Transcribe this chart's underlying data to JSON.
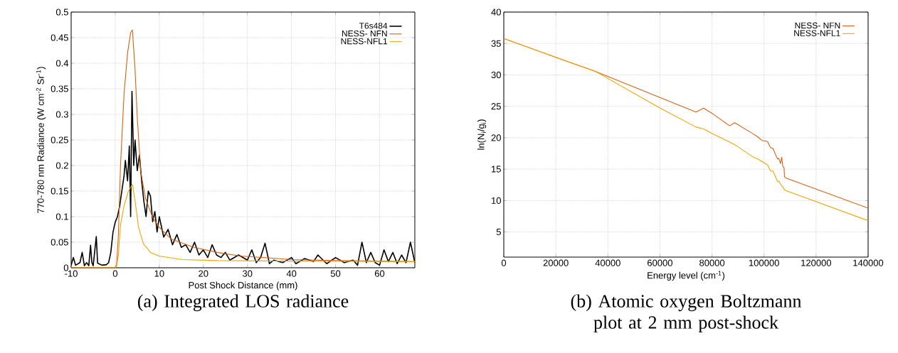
{
  "chart_data": [
    {
      "type": "line",
      "title": "(a) Integrated LOS radiance",
      "xlabel": "Post Shock Distance (mm)",
      "ylabel": "770-780 nm Radiance (W cm$^{-2}$ Sr$^{-1}$)",
      "xlim": [
        -10,
        68
      ],
      "ylim": [
        0,
        0.5
      ],
      "xticks": [
        -10,
        0,
        10,
        20,
        30,
        40,
        50,
        60
      ],
      "yticks": [
        0,
        0.05,
        0.1,
        0.15,
        0.2,
        0.25,
        0.3,
        0.35,
        0.4,
        0.45,
        0.5
      ],
      "grid": true,
      "legend": "top right",
      "series": [
        {
          "name": "T6s484",
          "color": "#000000",
          "x": [
            -10,
            -9.5,
            -9,
            -8,
            -7.5,
            -7,
            -6.5,
            -6,
            -5.6,
            -5.3,
            -5,
            -4.3,
            -4,
            -3,
            -2,
            -1.5,
            -1,
            -0.5,
            0,
            0.5,
            1,
            1.5,
            2,
            2.3,
            2.8,
            3.2,
            3.5,
            3.8,
            4.2,
            4.5,
            5,
            5.5,
            6,
            6.5,
            7,
            7.5,
            8,
            8.5,
            9,
            9.5,
            10,
            11,
            12,
            13,
            14,
            15,
            16,
            17,
            18,
            19,
            20,
            21,
            22,
            23,
            24,
            25,
            26,
            28,
            30,
            31,
            32,
            33,
            34,
            35,
            36,
            38,
            40,
            41,
            43,
            45,
            46,
            48,
            50,
            52,
            54,
            55,
            56,
            57,
            58,
            59,
            60,
            61,
            62,
            63,
            64,
            65,
            66,
            67,
            68
          ],
          "values": [
            0.005,
            0.02,
            0.005,
            0.01,
            0.03,
            0.004,
            0.01,
            0.004,
            0.044,
            0.01,
            0.004,
            0.061,
            0.009,
            0.005,
            0.006,
            0.01,
            0.03,
            0.07,
            0.089,
            0.1,
            0.12,
            0.15,
            0.18,
            0.21,
            0.17,
            0.238,
            0.1,
            0.345,
            0.2,
            0.25,
            0.19,
            0.22,
            0.17,
            0.13,
            0.1,
            0.15,
            0.14,
            0.09,
            0.11,
            0.07,
            0.1,
            0.06,
            0.075,
            0.045,
            0.065,
            0.04,
            0.045,
            0.03,
            0.05,
            0.025,
            0.035,
            0.02,
            0.045,
            0.025,
            0.02,
            0.03,
            0.015,
            0.025,
            0.015,
            0.035,
            0.01,
            0.02,
            0.048,
            0.008,
            0.015,
            0.01,
            0.02,
            0.008,
            0.018,
            0.012,
            0.025,
            0.008,
            0.02,
            0.01,
            0.015,
            0.005,
            0.05,
            0.01,
            0.03,
            0.01,
            0.005,
            0.035,
            0.012,
            0.03,
            0.008,
            0.025,
            0.01,
            0.05,
            0.01
          ]
        },
        {
          "name": "NESS- NFN",
          "color": "#d9600f",
          "x": [
            -10,
            0,
            0.3,
            0.7,
            1.2,
            2.0,
            2.8,
            3.5,
            3.9,
            4.5,
            5.0,
            5.8,
            6.9,
            8.5,
            10.0,
            12.7,
            17.9,
            23.2,
            28.4,
            35.2,
            40,
            50,
            60,
            68
          ],
          "values": [
            0,
            0,
            0.005,
            0.06,
            0.2,
            0.34,
            0.42,
            0.46,
            0.465,
            0.388,
            0.294,
            0.187,
            0.135,
            0.098,
            0.079,
            0.056,
            0.04,
            0.03,
            0.023,
            0.019,
            0.016,
            0.014,
            0.013,
            0.012
          ]
        },
        {
          "name": "NESS-NFL1",
          "color": "#f0a500",
          "x": [
            -10,
            0,
            0.3,
            0.7,
            1.2,
            2.0,
            3.0,
            3.9,
            4.5,
            5.3,
            6.4,
            8.0,
            10.0,
            15.2,
            23.2,
            40,
            68
          ],
          "values": [
            0,
            0,
            0.003,
            0.023,
            0.084,
            0.121,
            0.15,
            0.163,
            0.131,
            0.079,
            0.047,
            0.03,
            0.023,
            0.016,
            0.014,
            0.013,
            0.012
          ]
        }
      ]
    },
    {
      "type": "line",
      "title": "(b) Atomic oxygen Boltzmann plot at 2 mm post-shock",
      "xlabel": "Energy level (cm$^{-1}$)",
      "ylabel": "ln(N$_{i}$/g$_{i}$)",
      "xlim": [
        0,
        140000
      ],
      "ylim": [
        1,
        40
      ],
      "xticks": [
        0,
        20000,
        40000,
        60000,
        80000,
        100000,
        120000,
        140000
      ],
      "yticks": [
        5,
        10,
        15,
        20,
        25,
        30,
        35,
        40
      ],
      "grid": true,
      "legend": "top right",
      "series": [
        {
          "name": "NESS- NFN",
          "color": "#d9600f",
          "x": [
            0,
            20000,
            35000,
            60000,
            73850,
            76780,
            79960,
            86780,
            88780,
            95880,
            97700,
            99080,
            101330,
            102530,
            103440,
            104340,
            105240,
            105700,
            106330,
            106790,
            107240,
            107520,
            107700,
            107880,
            108330,
            140000
          ],
          "values": [
            35.8,
            32.8,
            30.6,
            26.4,
            24.1,
            24.7,
            23.9,
            21.9,
            22.4,
            20.6,
            20.1,
            19.6,
            19.4,
            18.4,
            18.3,
            17.4,
            16.6,
            16.7,
            15.9,
            16.9,
            15.4,
            15.3,
            15.2,
            13.8,
            13.6,
            8.8
          ]
        },
        {
          "name": "NESS-NFL1",
          "color": "#f0a500",
          "x": [
            0,
            20000,
            35000,
            59750,
            73850,
            76780,
            79960,
            86780,
            88780,
            95880,
            97700,
            101330,
            102530,
            103440,
            105240,
            105700,
            106790,
            107240,
            107700,
            108330,
            140000
          ],
          "values": [
            35.8,
            32.8,
            30.6,
            24.8,
            21.7,
            21.4,
            20.7,
            19.3,
            18.9,
            16.9,
            16.6,
            15.7,
            14.7,
            14.7,
            13.0,
            13.1,
            12.3,
            12.2,
            11.8,
            11.6,
            6.8
          ]
        }
      ]
    }
  ]
}
